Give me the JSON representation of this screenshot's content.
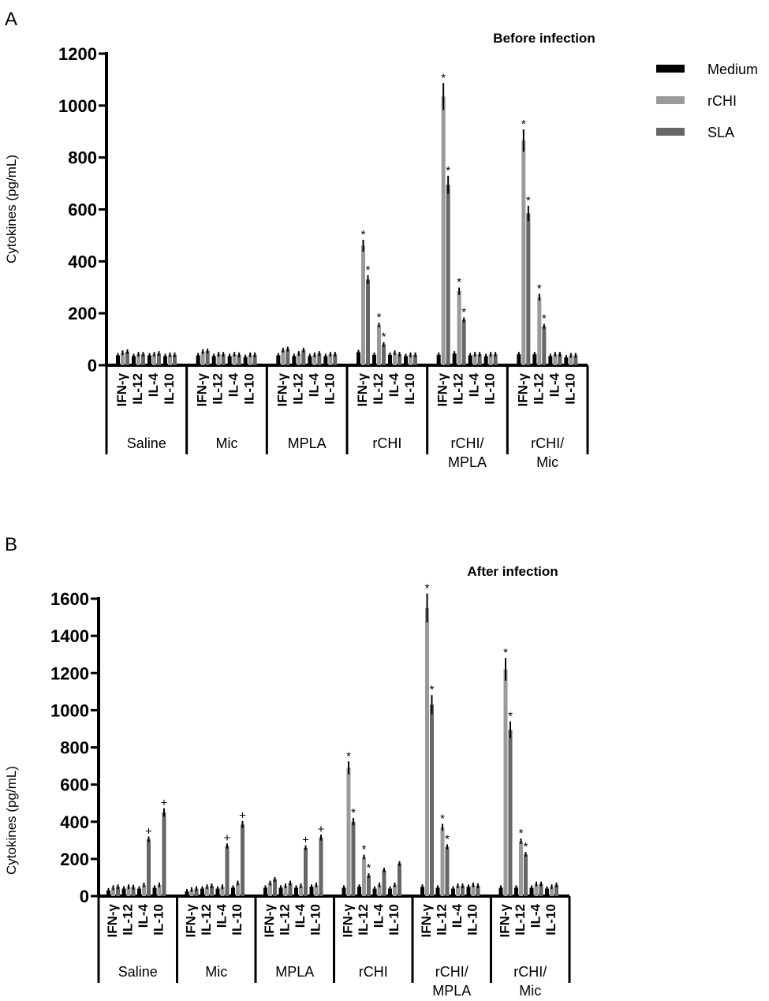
{
  "chart_data": [
    {
      "panel": "A",
      "type": "bar",
      "title": "Before infection",
      "ylabel": "Cytokines (pg/mL)",
      "ylim": [
        0,
        1200
      ],
      "yticks": [
        0,
        200,
        400,
        600,
        800,
        1000,
        1200
      ],
      "groups": [
        "Saline",
        "Mic",
        "MPLA",
        "rCHI",
        "rCHI/\nMPLA",
        "rCHI/\nMic"
      ],
      "cytokines": [
        "IFN-γ",
        "IL-12",
        "IL-4",
        "IL-10"
      ],
      "series": [
        {
          "name": "Medium",
          "color": "#000000",
          "values": [
            [
              38,
              35,
              38,
              35
            ],
            [
              38,
              35,
              35,
              32
            ],
            [
              38,
              35,
              35,
              35
            ],
            [
              50,
              40,
              40,
              35
            ],
            [
              40,
              45,
              38,
              35
            ],
            [
              42,
              42,
              35,
              30
            ]
          ]
        },
        {
          "name": "rCHI",
          "color": "#9a9a9a",
          "values": [
            [
              48,
              42,
              42,
              40
            ],
            [
              52,
              42,
              42,
              40
            ],
            [
              58,
              45,
              40,
              42
            ],
            [
              460,
              155,
              48,
              40
            ],
            [
              1035,
              285,
              42,
              42
            ],
            [
              865,
              262,
              42,
              38
            ]
          ]
        },
        {
          "name": "SLA",
          "color": "#666666",
          "values": [
            [
              52,
              42,
              45,
              40
            ],
            [
              55,
              42,
              40,
              40
            ],
            [
              62,
              58,
              45,
              42
            ],
            [
              330,
              80,
              42,
              40
            ],
            [
              695,
              175,
              42,
              42
            ],
            [
              585,
              150,
              42,
              38
            ]
          ]
        }
      ],
      "annotations": [
        {
          "group": 3,
          "cytokine": 0,
          "series": 1,
          "symbol": "*"
        },
        {
          "group": 3,
          "cytokine": 0,
          "series": 2,
          "symbol": "*"
        },
        {
          "group": 3,
          "cytokine": 1,
          "series": 1,
          "symbol": "*"
        },
        {
          "group": 3,
          "cytokine": 1,
          "series": 2,
          "symbol": "*"
        },
        {
          "group": 4,
          "cytokine": 0,
          "series": 1,
          "symbol": "*"
        },
        {
          "group": 4,
          "cytokine": 0,
          "series": 2,
          "symbol": "*"
        },
        {
          "group": 4,
          "cytokine": 1,
          "series": 1,
          "symbol": "*"
        },
        {
          "group": 4,
          "cytokine": 1,
          "series": 2,
          "symbol": "*"
        },
        {
          "group": 5,
          "cytokine": 0,
          "series": 1,
          "symbol": "*"
        },
        {
          "group": 5,
          "cytokine": 0,
          "series": 2,
          "symbol": "*"
        },
        {
          "group": 5,
          "cytokine": 1,
          "series": 1,
          "symbol": "*"
        },
        {
          "group": 5,
          "cytokine": 1,
          "series": 2,
          "symbol": "*"
        }
      ],
      "legend": "top-right"
    },
    {
      "panel": "B",
      "type": "bar",
      "title": "After infection",
      "ylabel": "Cytokines (pg/mL)",
      "ylim": [
        0,
        1600
      ],
      "yticks": [
        0,
        200,
        400,
        600,
        800,
        1000,
        1200,
        1400,
        1600
      ],
      "groups": [
        "Saline",
        "Mic",
        "MPLA",
        "rCHI",
        "rCHI/\nMPLA",
        "rCHI/\nMic"
      ],
      "cytokines": [
        "IFN-γ",
        "IL-12",
        "IL-4",
        "IL-10"
      ],
      "series": [
        {
          "name": "Medium",
          "color": "#000000",
          "values": [
            [
              30,
              40,
              40,
              45
            ],
            [
              25,
              40,
              40,
              45
            ],
            [
              45,
              45,
              45,
              50
            ],
            [
              45,
              50,
              40,
              40
            ],
            [
              50,
              45,
              40,
              50
            ],
            [
              45,
              45,
              45,
              40
            ]
          ]
        },
        {
          "name": "rCHI",
          "color": "#9a9a9a",
          "values": [
            [
              45,
              50,
              60,
              60
            ],
            [
              35,
              50,
              50,
              70
            ],
            [
              70,
              55,
              55,
              60
            ],
            [
              690,
              210,
              60,
              60
            ],
            [
              1550,
              370,
              55,
              60
            ],
            [
              1220,
              295,
              65,
              50
            ]
          ]
        },
        {
          "name": "SLA",
          "color": "#666666",
          "values": [
            [
              50,
              48,
              305,
              450
            ],
            [
              40,
              55,
              270,
              385
            ],
            [
              90,
              70,
              260,
              315
            ],
            [
              400,
              110,
              140,
              175
            ],
            [
              1030,
              265,
              55,
              55
            ],
            [
              895,
              225,
              65,
              60
            ]
          ]
        }
      ],
      "annotations": [
        {
          "group": 0,
          "cytokine": 2,
          "series": 2,
          "symbol": "+"
        },
        {
          "group": 0,
          "cytokine": 3,
          "series": 2,
          "symbol": "+"
        },
        {
          "group": 1,
          "cytokine": 2,
          "series": 2,
          "symbol": "+"
        },
        {
          "group": 1,
          "cytokine": 3,
          "series": 2,
          "symbol": "+"
        },
        {
          "group": 2,
          "cytokine": 2,
          "series": 2,
          "symbol": "+"
        },
        {
          "group": 2,
          "cytokine": 3,
          "series": 2,
          "symbol": "+"
        },
        {
          "group": 3,
          "cytokine": 0,
          "series": 1,
          "symbol": "*"
        },
        {
          "group": 3,
          "cytokine": 0,
          "series": 2,
          "symbol": "*"
        },
        {
          "group": 3,
          "cytokine": 1,
          "series": 1,
          "symbol": "*"
        },
        {
          "group": 3,
          "cytokine": 1,
          "series": 2,
          "symbol": "*"
        },
        {
          "group": 4,
          "cytokine": 0,
          "series": 1,
          "symbol": "*"
        },
        {
          "group": 4,
          "cytokine": 0,
          "series": 2,
          "symbol": "*"
        },
        {
          "group": 4,
          "cytokine": 1,
          "series": 1,
          "symbol": "*"
        },
        {
          "group": 4,
          "cytokine": 1,
          "series": 2,
          "symbol": "*"
        },
        {
          "group": 5,
          "cytokine": 0,
          "series": 1,
          "symbol": "*"
        },
        {
          "group": 5,
          "cytokine": 0,
          "series": 2,
          "symbol": "*"
        },
        {
          "group": 5,
          "cytokine": 1,
          "series": 1,
          "symbol": "*"
        },
        {
          "group": 5,
          "cytokine": 1,
          "series": 2,
          "symbol": "*"
        }
      ]
    }
  ]
}
